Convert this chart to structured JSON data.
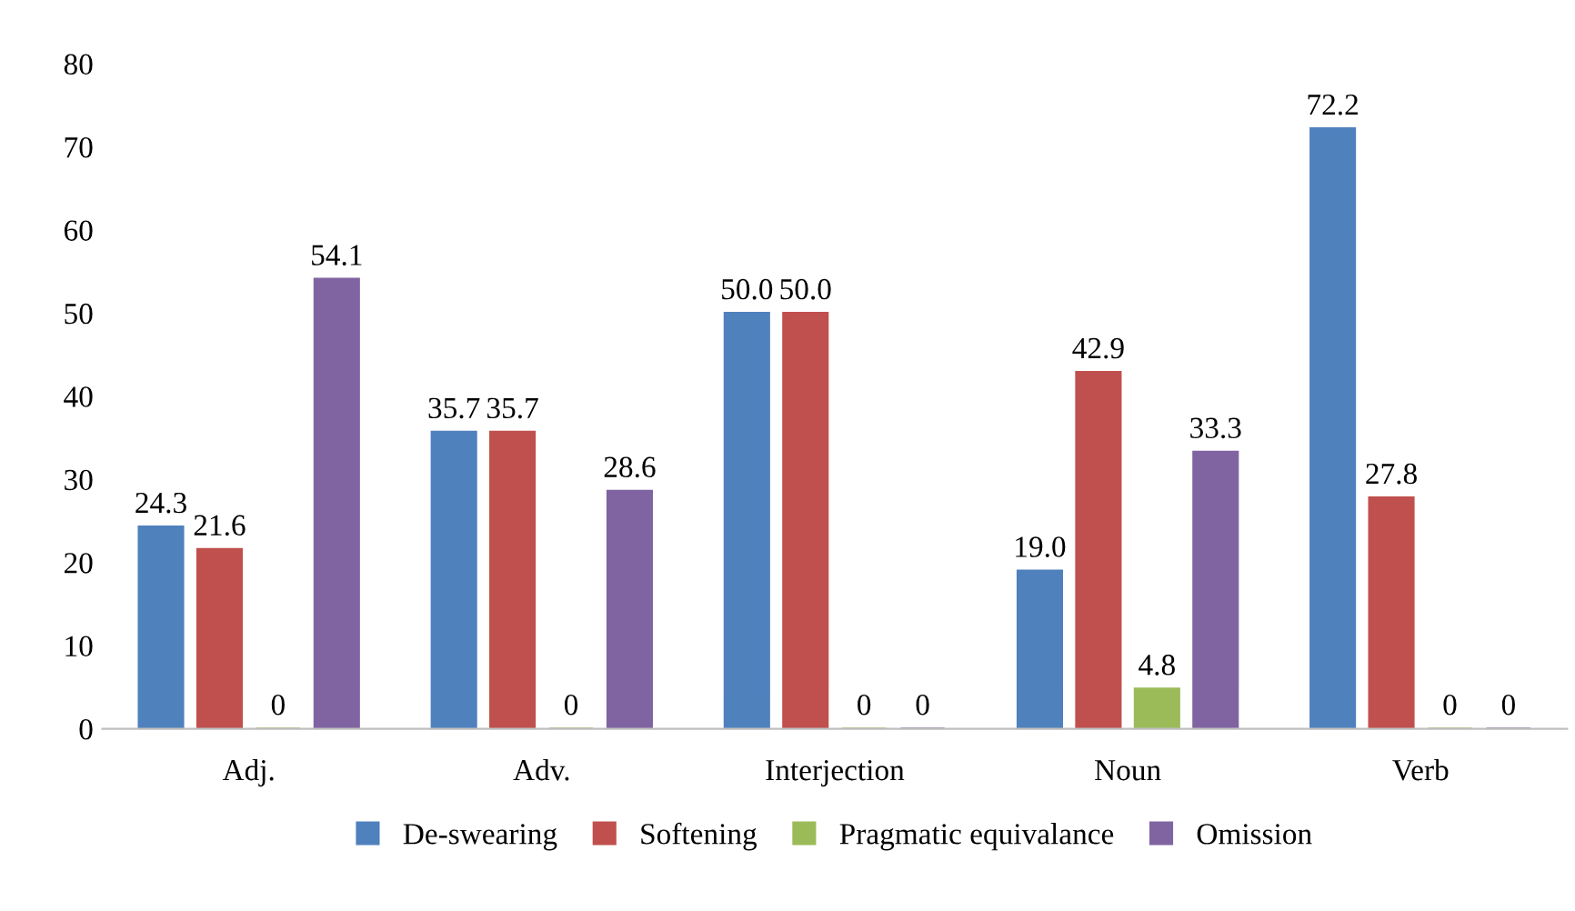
{
  "chart_data": {
    "type": "bar",
    "categories": [
      "Adj.",
      "Adv.",
      "Interjection",
      "Noun",
      "Verb"
    ],
    "series": [
      {
        "name": "De-swearing",
        "color": "#4f81bd",
        "values": [
          24.3,
          35.7,
          50.0,
          19.0,
          72.2
        ],
        "value_labels": [
          "24.3",
          "35.7",
          "50.0",
          "19.0",
          "72.2"
        ]
      },
      {
        "name": "Softening",
        "color": "#c0504d",
        "values": [
          21.6,
          35.7,
          50.0,
          42.9,
          27.8
        ],
        "value_labels": [
          "21.6",
          "35.7",
          "50.0",
          "42.9",
          "27.8"
        ]
      },
      {
        "name": "Pragmatic equivalance",
        "color": "#9bbb59",
        "values": [
          0,
          0,
          0,
          4.8,
          0
        ],
        "value_labels": [
          "0",
          "0",
          "0",
          "4.8",
          "0"
        ]
      },
      {
        "name": "Omission",
        "color": "#8064a2",
        "values": [
          54.1,
          28.6,
          0,
          33.3,
          0
        ],
        "value_labels": [
          "54.1",
          "28.6",
          "0",
          "33.3",
          "0"
        ]
      }
    ],
    "ylim": [
      0,
      80
    ],
    "yticks": [
      0,
      10,
      20,
      30,
      40,
      50,
      60,
      70,
      80
    ],
    "grid": false,
    "legend": "bottom"
  }
}
